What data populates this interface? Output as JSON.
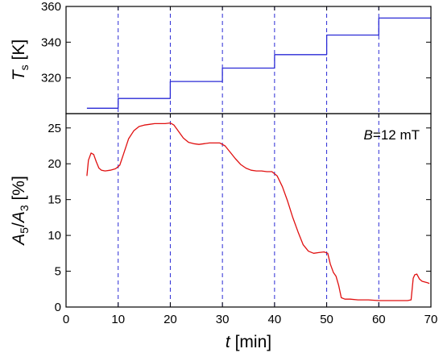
{
  "chart_data": [
    {
      "type": "line",
      "panel": "top",
      "ylabel": {
        "italic": "T",
        "sub": "s",
        "rest": " [K]"
      },
      "xlim": [
        0,
        70
      ],
      "ylim": [
        300,
        360
      ],
      "yticks": [
        320,
        340,
        360
      ],
      "grid": false,
      "vlines": [
        10,
        20,
        30,
        40,
        50,
        60
      ],
      "series": [
        {
          "color": "#2a2ad6",
          "x": [
            4,
            10,
            10,
            20,
            20,
            30,
            30,
            40,
            40,
            50,
            50,
            60,
            60,
            70
          ],
          "y": [
            303,
            303,
            308.5,
            308.5,
            318,
            318,
            325.5,
            325.5,
            333,
            333,
            344,
            344,
            353.5,
            353.5
          ]
        }
      ]
    },
    {
      "type": "line",
      "panel": "bottom",
      "xlabel": {
        "italic": "t",
        "rest": " [min]"
      },
      "ylabel": {
        "italic1": "A",
        "sub1": "5",
        "slash": "/",
        "italic2": "A",
        "sub2": "3",
        "rest": " [%]"
      },
      "xlim": [
        0,
        70
      ],
      "ylim": [
        0,
        27
      ],
      "xticks": [
        0,
        10,
        20,
        30,
        40,
        50,
        60,
        70
      ],
      "yticks": [
        0,
        5,
        10,
        15,
        20,
        25
      ],
      "grid": false,
      "vlines": [
        10,
        20,
        30,
        40,
        50,
        60
      ],
      "annotation": {
        "italic": "B",
        "rest": "=12 mT"
      },
      "series": [
        {
          "color": "#e01010",
          "x": [
            4.0,
            4.3,
            4.8,
            5.3,
            5.8,
            6.3,
            6.8,
            7.5,
            8.5,
            9.5,
            10.3,
            11.0,
            12.0,
            13.0,
            14.0,
            15.0,
            16.0,
            17.0,
            18.0,
            19.0,
            20.0,
            20.7,
            21.5,
            22.5,
            23.5,
            24.5,
            25.5,
            26.5,
            27.5,
            28.5,
            29.5,
            30.5,
            31.5,
            32.5,
            33.5,
            34.5,
            35.5,
            36.5,
            37.5,
            38.5,
            39.5,
            40.5,
            41.5,
            42.5,
            43.5,
            44.5,
            45.5,
            46.5,
            47.5,
            48.5,
            49.5,
            50.2,
            50.7,
            51.3,
            51.8,
            52.3,
            52.8,
            53.5,
            54.5,
            56.0,
            58.0,
            60.0,
            62.0,
            64.0,
            65.5,
            66.2,
            66.6,
            66.9,
            67.3,
            67.8,
            68.3,
            68.8,
            69.3,
            69.7
          ],
          "y": [
            18.3,
            20.5,
            21.5,
            21.3,
            20.3,
            19.4,
            19.1,
            19.0,
            19.1,
            19.3,
            19.8,
            21.3,
            23.5,
            24.6,
            25.2,
            25.4,
            25.5,
            25.6,
            25.6,
            25.6,
            25.7,
            25.4,
            24.6,
            23.6,
            23.0,
            22.8,
            22.7,
            22.8,
            22.9,
            22.9,
            22.9,
            22.5,
            21.6,
            20.7,
            19.9,
            19.4,
            19.1,
            19.0,
            19.0,
            18.9,
            18.9,
            18.3,
            16.8,
            14.8,
            12.5,
            10.5,
            8.7,
            7.8,
            7.5,
            7.6,
            7.7,
            7.5,
            6.0,
            4.8,
            4.3,
            3.0,
            1.3,
            1.1,
            1.1,
            1.0,
            1.0,
            0.9,
            0.9,
            0.9,
            0.9,
            1.0,
            4.0,
            4.5,
            4.6,
            3.9,
            3.6,
            3.5,
            3.4,
            3.3
          ]
        }
      ]
    }
  ]
}
